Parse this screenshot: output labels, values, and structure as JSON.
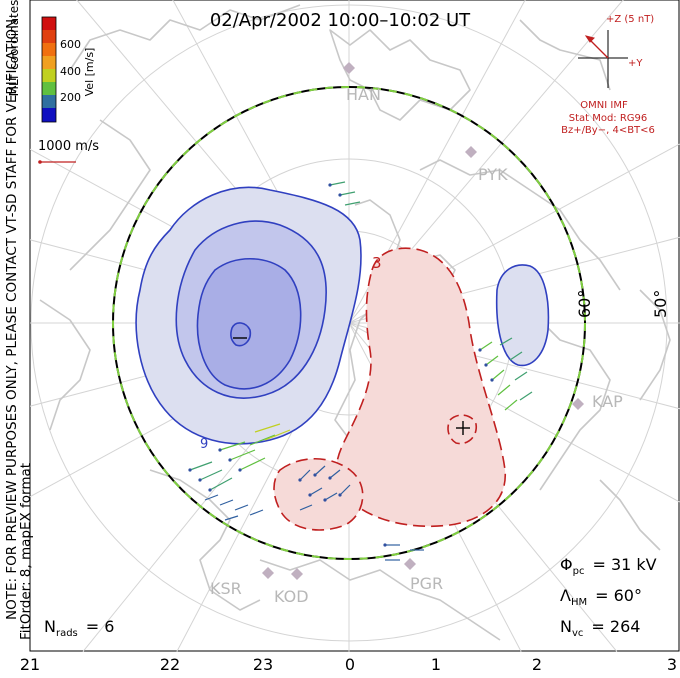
{
  "title": "02/Apr/2002  10:00–10:02  UT",
  "left_note_line1": "NOTE: FOR PREVIEW PURPOSES ONLY, PLEASE CONTACT VT-SD STAFF FOR VERIFICATION.",
  "left_note_line2": "FitOrder: 8,  mapEX format",
  "coord_label": "MLT coordinates",
  "colorbar": {
    "title": "Vel [m/s]",
    "ticks": [
      "600",
      "400",
      "200"
    ],
    "colors": [
      "#d01010",
      "#f07010",
      "#f0a020",
      "#c0d020",
      "#60c040",
      "#40a070",
      "#3060a0",
      "#1010c0"
    ]
  },
  "vector_scale": "1000 m/s",
  "imf": {
    "z_label": "+Z (5 nT)",
    "y_label": "+Y",
    "source": "OMNI IMF",
    "model": "Stat Mod: RG96",
    "condition": "Bz+/By−, 4<BT<6"
  },
  "lat_labels": [
    "60°",
    "50°"
  ],
  "mlt_labels": [
    "21",
    "22",
    "23",
    "0",
    "1",
    "2",
    "3"
  ],
  "radars": [
    "HAN",
    "PYK",
    "KAP",
    "PGR",
    "KOD",
    "KSR"
  ],
  "contour_labels": [
    "3",
    "9"
  ],
  "stats": {
    "phi_symbol": "Φ",
    "phi_sub": "pc",
    "phi_value": "= 31 kV",
    "lambda_symbol": "Λ",
    "lambda_sub": "HM",
    "lambda_value": "= 60°",
    "nvc_symbol": "N",
    "nvc_sub": "vc",
    "nvc_value": "= 264",
    "nrads_symbol": "N",
    "nrads_sub": "rads",
    "nrads_value": "= 6"
  },
  "colors": {
    "negative_cell": "#3040c0",
    "positive_cell": "#c02020",
    "boundary_green": "#80d040",
    "coast": "#c8c8c8",
    "grid": "#d4d4d4"
  }
}
